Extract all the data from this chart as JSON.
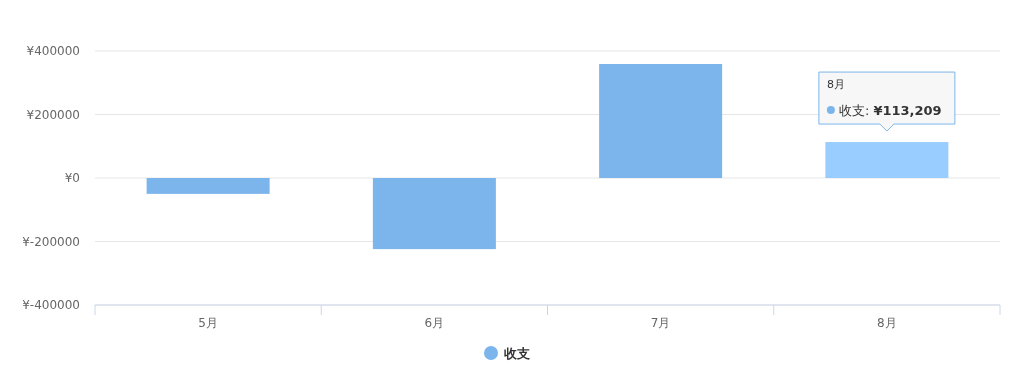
{
  "chart_data": {
    "type": "bar",
    "categories": [
      "5月",
      "6月",
      "7月",
      "8月"
    ],
    "series": [
      {
        "name": "收支",
        "color": "#7cb5ec",
        "colors": [
          "#7cb5ec",
          "#7cb5ec",
          "#7cb5ec",
          "#99ccff"
        ],
        "values": [
          -50000,
          -224000,
          359000,
          113209
        ]
      }
    ],
    "annotations": [
      {
        "text": "收支: **¥113,209**",
        "x": "8月",
        "y": 113209
      }
    ],
    "ylim": [
      -400000,
      400000
    ],
    "yticks": [
      {
        "value": -400000,
        "label": "¥-400000"
      },
      {
        "value": -200000,
        "label": "¥-200000"
      },
      {
        "value": 0,
        "label": "¥0"
      },
      {
        "value": 200000,
        "label": "¥200000"
      },
      {
        "value": 400000,
        "label": "¥400000"
      }
    ],
    "grid": "y",
    "legend": "bottom"
  }
}
